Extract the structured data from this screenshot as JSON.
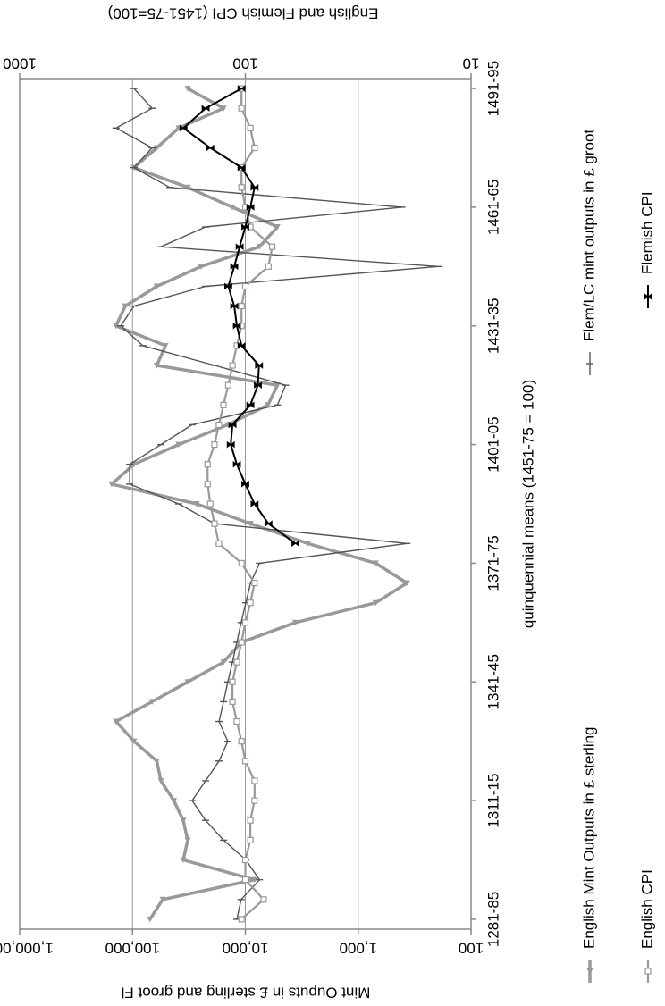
{
  "chart_data": {
    "type": "line",
    "title": "English and Flemish CPI (1451-75=100)",
    "y_label": "Mint Ouputs in £ sterling and groot Fl",
    "x_label": "quinquennial means (1451-75 = 100)",
    "categories": [
      "1281-85",
      null,
      null,
      null,
      null,
      null,
      "1311-15",
      null,
      null,
      null,
      null,
      null,
      "1341-45",
      null,
      null,
      null,
      null,
      null,
      "1371-75",
      null,
      null,
      null,
      null,
      null,
      "1401-05",
      null,
      null,
      null,
      null,
      null,
      "1431-35",
      null,
      null,
      null,
      null,
      null,
      "1461-65",
      null,
      null,
      null,
      null,
      null,
      "1491-95"
    ],
    "ylim": [
      100,
      1000000
    ],
    "yticks": [
      100,
      {
        "value": 1000,
        "label": "1,000"
      },
      {
        "value": 10000,
        "label": "10,000"
      },
      {
        "value": 100000,
        "label": "100,000"
      },
      {
        "value": 1000000,
        "label": "1,000,000"
      }
    ],
    "ylog": true,
    "y2lim": [
      10,
      1000
    ],
    "y2ticks": [
      10,
      100,
      1000
    ],
    "y2log": true,
    "grid": true,
    "legend": "right",
    "series": [
      {
        "name": "English Mint Outputs in £ sterling",
        "color": "#999999",
        "marker": "triangle",
        "axis": "y",
        "values": [
          70000,
          54000,
          8300,
          35500,
          32400,
          35500,
          43000,
          56000,
          61000,
          97000,
          140000,
          67000,
          32400,
          15600,
          10900,
          3600,
          700,
          370,
          700,
          2800,
          9000,
          27000,
          153000,
          97000,
          39000,
          14300,
          6300,
          5200,
          61000,
          51000,
          140000,
          116000,
          61000,
          24700,
          7500,
          5200,
          13000,
          32400,
          97000,
          61000,
          39000,
          15600,
          32400
        ]
      },
      {
        "name": "Flem/LC mint outputs in £ groot",
        "color": "#555555",
        "marker": "dash",
        "axis": "y",
        "values": [
          11900,
          10900,
          7500,
          9900,
          15600,
          22500,
          29600,
          22500,
          17100,
          14300,
          17100,
          15600,
          14300,
          13000,
          11900,
          10900,
          9900,
          9000,
          7500,
          370,
          18700,
          39000,
          106000,
          106000,
          56000,
          29600,
          5200,
          4400,
          18700,
          81000,
          127000,
          97000,
          22500,
          196,
          56000,
          22500,
          410,
          46700,
          97000,
          67000,
          140000,
          67000,
          97000
        ]
      },
      {
        "name": "English CPI",
        "color": "#999999",
        "marker": "square",
        "axis": "y2",
        "values": [
          104,
          83,
          100,
          100,
          95,
          95,
          91,
          91,
          100,
          104,
          109,
          114,
          114,
          109,
          104,
          100,
          95,
          91,
          104,
          131,
          137,
          143,
          147,
          147,
          137,
          131,
          125,
          119,
          114,
          109,
          104,
          104,
          100,
          79,
          76,
          95,
          100,
          104,
          104,
          91,
          95,
          104,
          104
        ]
      },
      {
        "name": "Flemish CPI",
        "color": "#000000",
        "marker": "bowtie",
        "axis": "y2",
        "values": [
          null,
          null,
          null,
          null,
          null,
          null,
          null,
          null,
          null,
          null,
          null,
          null,
          null,
          null,
          null,
          null,
          null,
          null,
          null,
          60,
          79,
          91,
          100,
          109,
          116,
          114,
          95,
          88,
          87,
          104,
          109,
          112,
          119,
          112,
          106,
          100,
          95,
          91,
          104,
          143,
          188,
          150,
          104
        ]
      }
    ]
  }
}
